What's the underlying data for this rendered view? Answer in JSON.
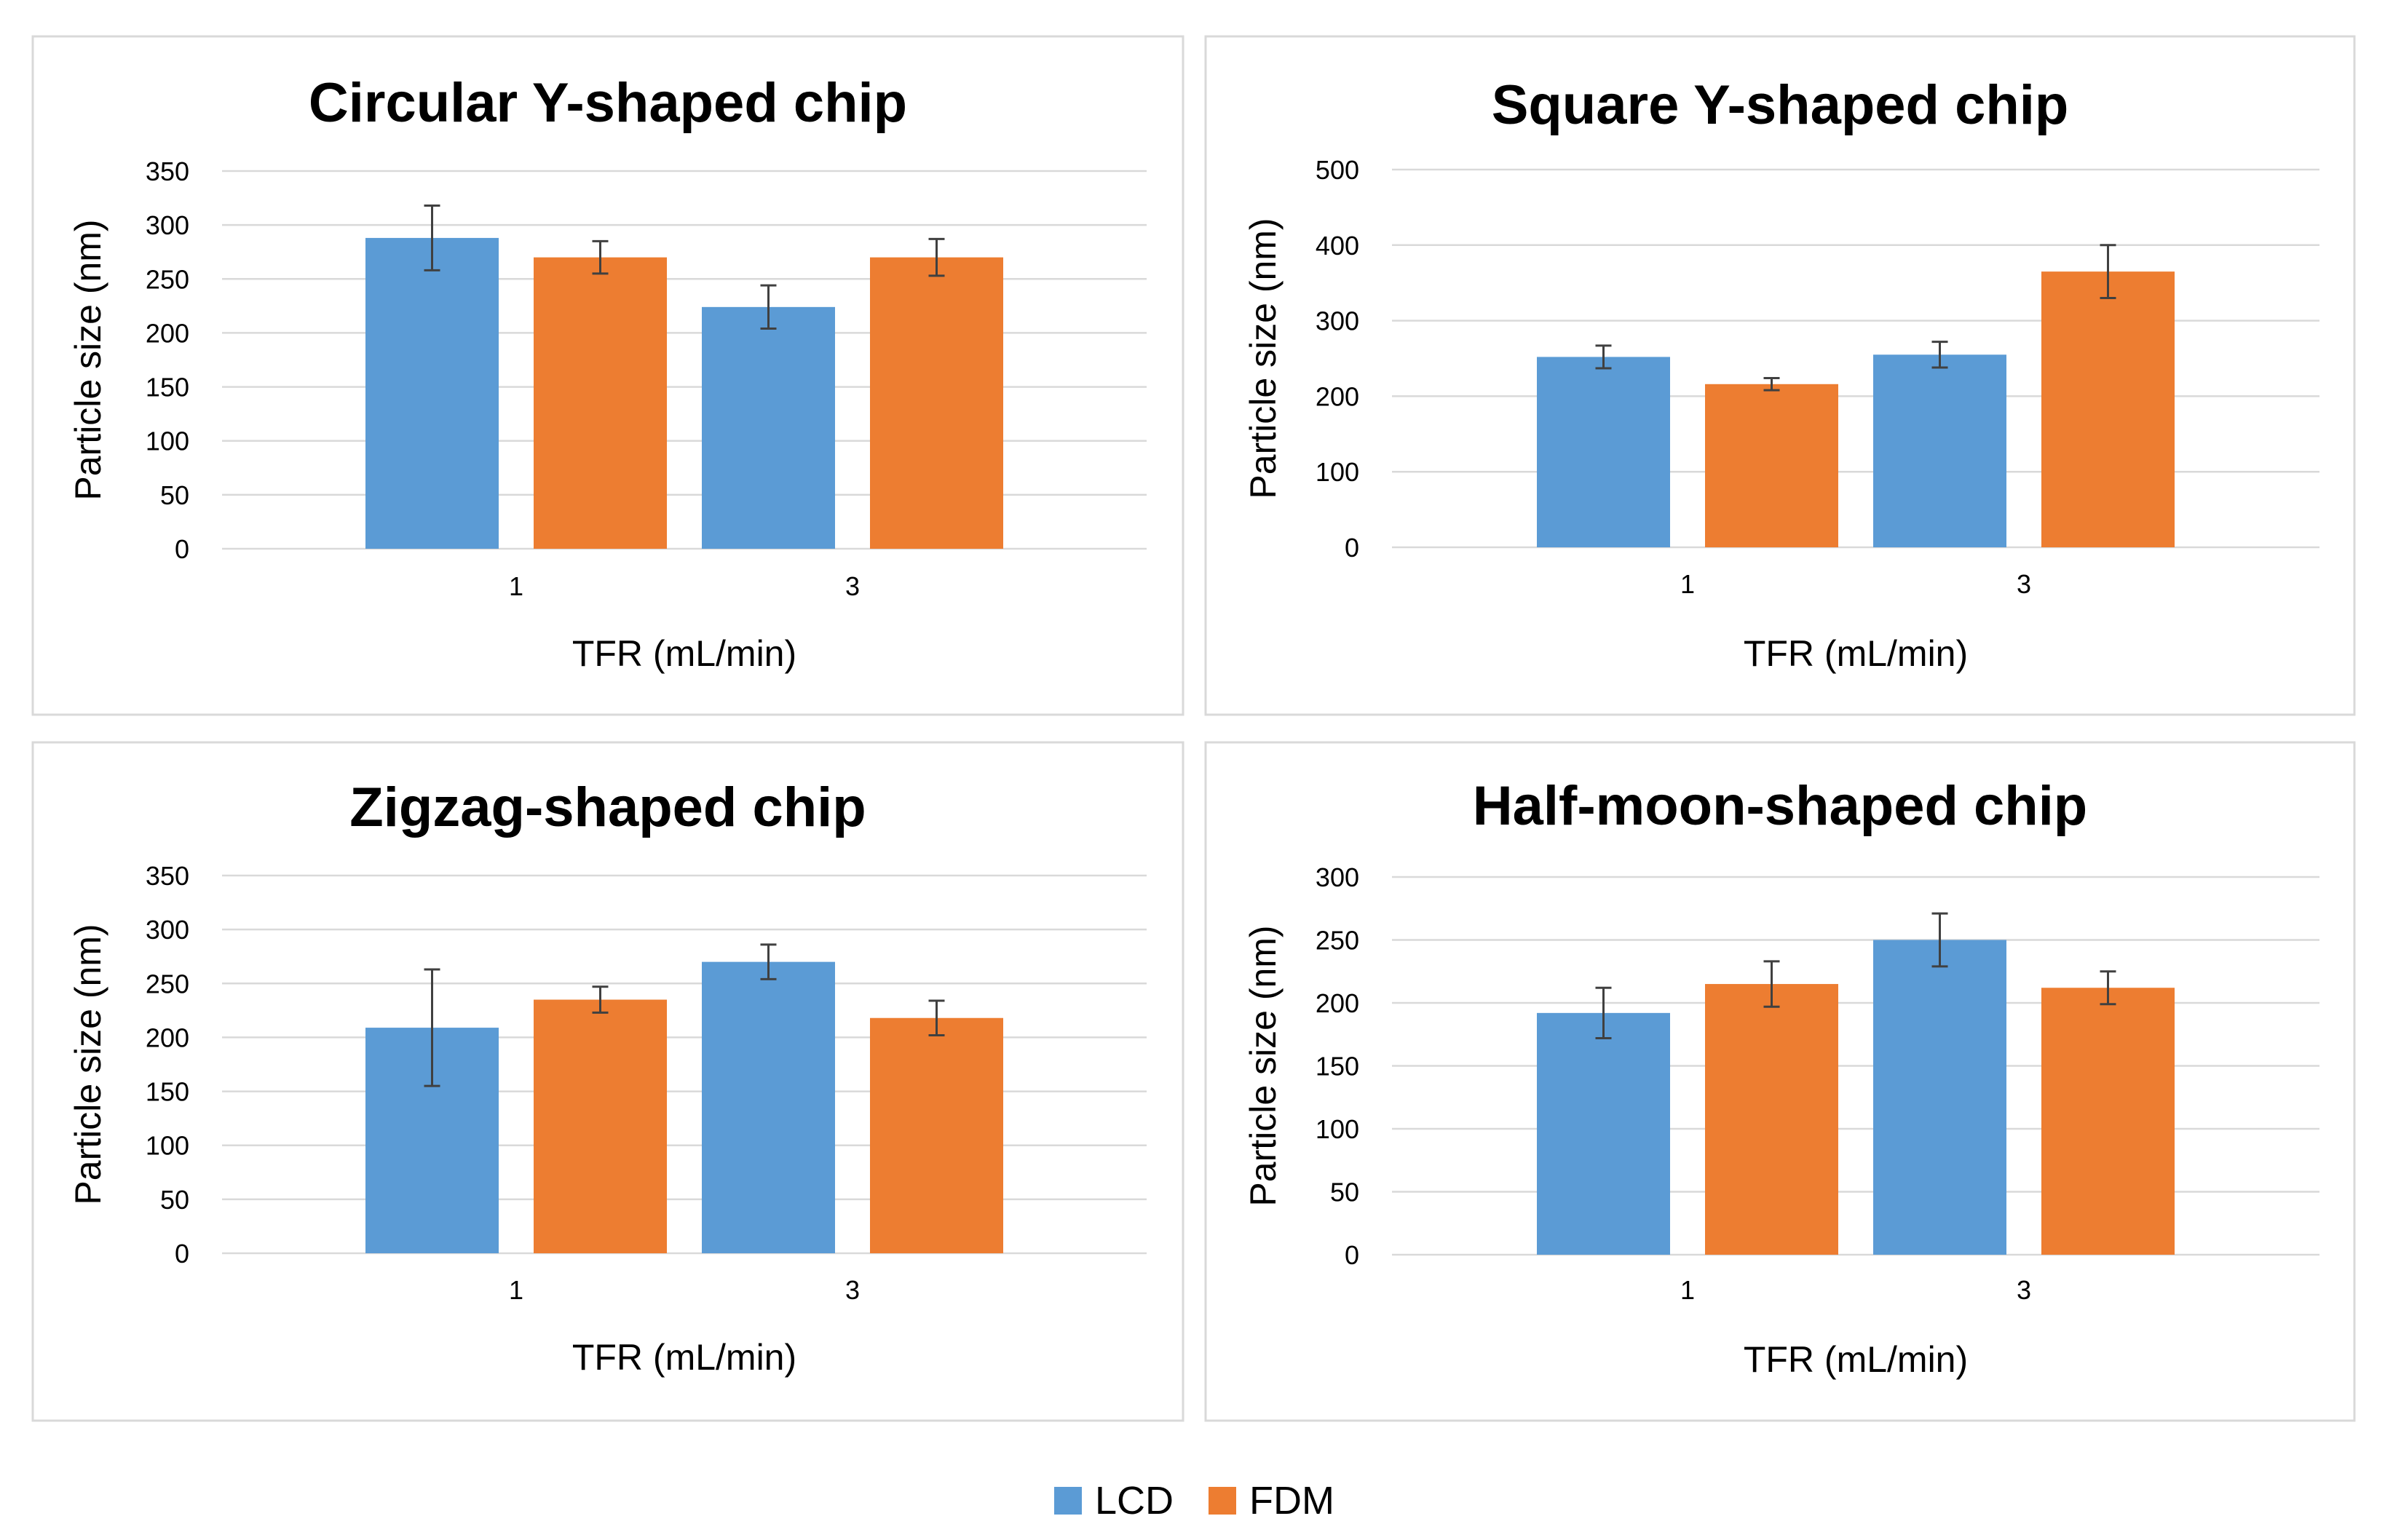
{
  "colors": {
    "LCD": "#5b9bd5",
    "FDM": "#ed7d31"
  },
  "legend": [
    {
      "name": "LCD",
      "color": "#5b9bd5"
    },
    {
      "name": "FDM",
      "color": "#ed7d31"
    }
  ],
  "chart_data": [
    {
      "type": "bar",
      "title": "Circular Y-shaped chip",
      "xlabel": "TFR (mL/min)",
      "ylabel": "Particle size (nm)",
      "categories": [
        "1",
        "3"
      ],
      "ylim": [
        0,
        350
      ],
      "yticks": [
        0,
        50,
        100,
        150,
        200,
        250,
        300,
        350
      ],
      "series": [
        {
          "name": "LCD",
          "values": [
            288,
            224
          ],
          "errors": [
            30,
            20
          ]
        },
        {
          "name": "FDM",
          "values": [
            270,
            270
          ],
          "errors": [
            15,
            17
          ]
        }
      ]
    },
    {
      "type": "bar",
      "title": "Square Y-shaped chip",
      "xlabel": "TFR (mL/min)",
      "ylabel": "Particle size (nm)",
      "categories": [
        "1",
        "3"
      ],
      "ylim": [
        0,
        500
      ],
      "yticks": [
        0,
        100,
        200,
        300,
        400,
        500
      ],
      "series": [
        {
          "name": "LCD",
          "values": [
            252,
            255
          ],
          "errors": [
            15,
            17
          ]
        },
        {
          "name": "FDM",
          "values": [
            216,
            365
          ],
          "errors": [
            8,
            35
          ]
        }
      ]
    },
    {
      "type": "bar",
      "title": "Zigzag-shaped chip",
      "xlabel": "TFR (mL/min)",
      "ylabel": "Particle size (nm)",
      "categories": [
        "1",
        "3"
      ],
      "ylim": [
        0,
        350
      ],
      "yticks": [
        0,
        50,
        100,
        150,
        200,
        250,
        300,
        350
      ],
      "series": [
        {
          "name": "LCD",
          "values": [
            209,
            270
          ],
          "errors": [
            54,
            16
          ]
        },
        {
          "name": "FDM",
          "values": [
            235,
            218
          ],
          "errors": [
            12,
            16
          ]
        }
      ]
    },
    {
      "type": "bar",
      "title": "Half-moon-shaped chip",
      "xlabel": "TFR (mL/min)",
      "ylabel": "Particle size (nm)",
      "categories": [
        "1",
        "3"
      ],
      "ylim": [
        0,
        300
      ],
      "yticks": [
        0,
        50,
        100,
        150,
        200,
        250,
        300
      ],
      "series": [
        {
          "name": "LCD",
          "values": [
            192,
            250
          ],
          "errors": [
            20,
            21
          ]
        },
        {
          "name": "FDM",
          "values": [
            215,
            212
          ],
          "errors": [
            18,
            13
          ]
        }
      ]
    }
  ]
}
